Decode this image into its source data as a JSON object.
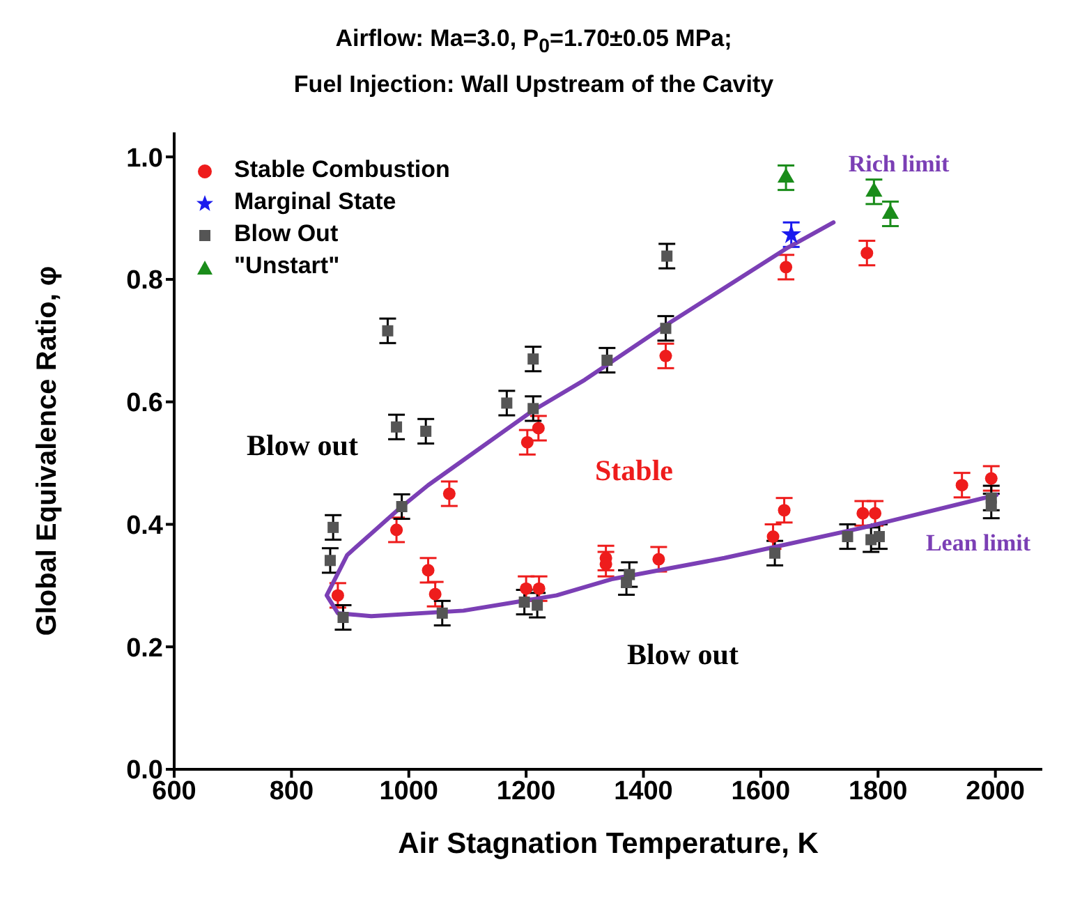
{
  "chart_data": {
    "type": "scatter",
    "title": "Airflow: Ma=3.0, P$_{0}$=1.70±0.05 MPa;",
    "subtitle": "Fuel Injection: Wall Upstream of the Cavity",
    "xlabel": "Air Stagnation Temperature, K",
    "ylabel": "Global Equivalence Ratio, φ",
    "xlim": [
      600,
      2080
    ],
    "xticks": [
      600,
      800,
      1000,
      1200,
      1400,
      1600,
      1800,
      2000
    ],
    "ylim": [
      0,
      1.04
    ],
    "yticks": [
      {
        "value": 0,
        "label": "0.0"
      },
      {
        "value": 0.2,
        "label": "0.2"
      },
      {
        "value": 0.4,
        "label": "0.4"
      },
      {
        "value": 0.6,
        "label": "0.6"
      },
      {
        "value": 0.8,
        "label": "0.8"
      },
      {
        "value": 1,
        "label": "1.0"
      }
    ],
    "legend": "top left",
    "series": [
      {
        "name": "Stable Combustion",
        "marker": "circle",
        "color": "#ee1c1c",
        "x": [
          879,
          979,
          1069,
          1033,
          1045,
          1200,
          1222,
          1336,
          1336,
          1426,
          1621,
          1640,
          1774,
          1795,
          1943,
          1993,
          1202,
          1221,
          1438,
          1643,
          1781
        ],
        "values": [
          0.284,
          0.391,
          0.45,
          0.325,
          0.286,
          0.295,
          0.295,
          0.345,
          0.335,
          0.343,
          0.38,
          0.423,
          0.418,
          0.418,
          0.464,
          0.475,
          0.534,
          0.557,
          0.675,
          0.82,
          0.843
        ],
        "errors": [
          0.02,
          0.02,
          0.02,
          0.02,
          0.02,
          0.02,
          0.02,
          0.02,
          0.02,
          0.02,
          0.02,
          0.02,
          0.02,
          0.02,
          0.02,
          0.02,
          0.02,
          0.02,
          0.02,
          0.02,
          0.02
        ]
      },
      {
        "name": "Marginal State",
        "marker": "star",
        "color": "#1a1aee",
        "x": [
          1652
        ],
        "values": [
          0.873
        ],
        "errors": [
          0.02
        ]
      },
      {
        "name": "Blow Out",
        "marker": "square",
        "color": "#555555",
        "x": [
          964,
          979,
          1029,
          1167,
          1212,
          1212,
          1338,
          1440,
          1438,
          871,
          866,
          888,
          988,
          1057,
          1197,
          1219,
          1371,
          1376,
          1624,
          1748,
          1788,
          1802,
          1993,
          1993
        ],
        "values": [
          0.716,
          0.559,
          0.552,
          0.598,
          0.67,
          0.589,
          0.668,
          0.838,
          0.72,
          0.395,
          0.341,
          0.248,
          0.429,
          0.255,
          0.273,
          0.268,
          0.305,
          0.318,
          0.353,
          0.38,
          0.375,
          0.38,
          0.443,
          0.43
        ],
        "errors": [
          0.02,
          0.02,
          0.02,
          0.02,
          0.02,
          0.02,
          0.02,
          0.02,
          0.02,
          0.02,
          0.02,
          0.02,
          0.02,
          0.02,
          0.02,
          0.02,
          0.02,
          0.02,
          0.02,
          0.02,
          0.02,
          0.02,
          0.02,
          0.02
        ]
      },
      {
        "name": "\"Unstart\"",
        "marker": "triangle",
        "color": "#1a8c1a",
        "x": [
          1643,
          1793,
          1821
        ],
        "values": [
          0.966,
          0.943,
          0.907
        ],
        "errors": [
          0.02,
          0.02,
          0.02
        ]
      },
      {
        "type": "line",
        "marker": "none",
        "line_style": "solid",
        "color": "#7b3fb5",
        "x": [
          1724,
          1643,
          1438,
          1300,
          1212,
          1093,
          1033,
          983,
          895,
          860,
          879,
          936,
          1093,
          1252,
          1348,
          1538,
          1776,
          2002
        ],
        "values": [
          0.893,
          0.85,
          0.725,
          0.636,
          0.586,
          0.505,
          0.464,
          0.425,
          0.35,
          0.284,
          0.255,
          0.25,
          0.259,
          0.284,
          0.311,
          0.345,
          0.395,
          0.448
        ]
      }
    ],
    "annotations": [
      "Blow out",
      "Stable",
      "Blow out",
      "Rich limit",
      "Lean limit"
    ]
  }
}
